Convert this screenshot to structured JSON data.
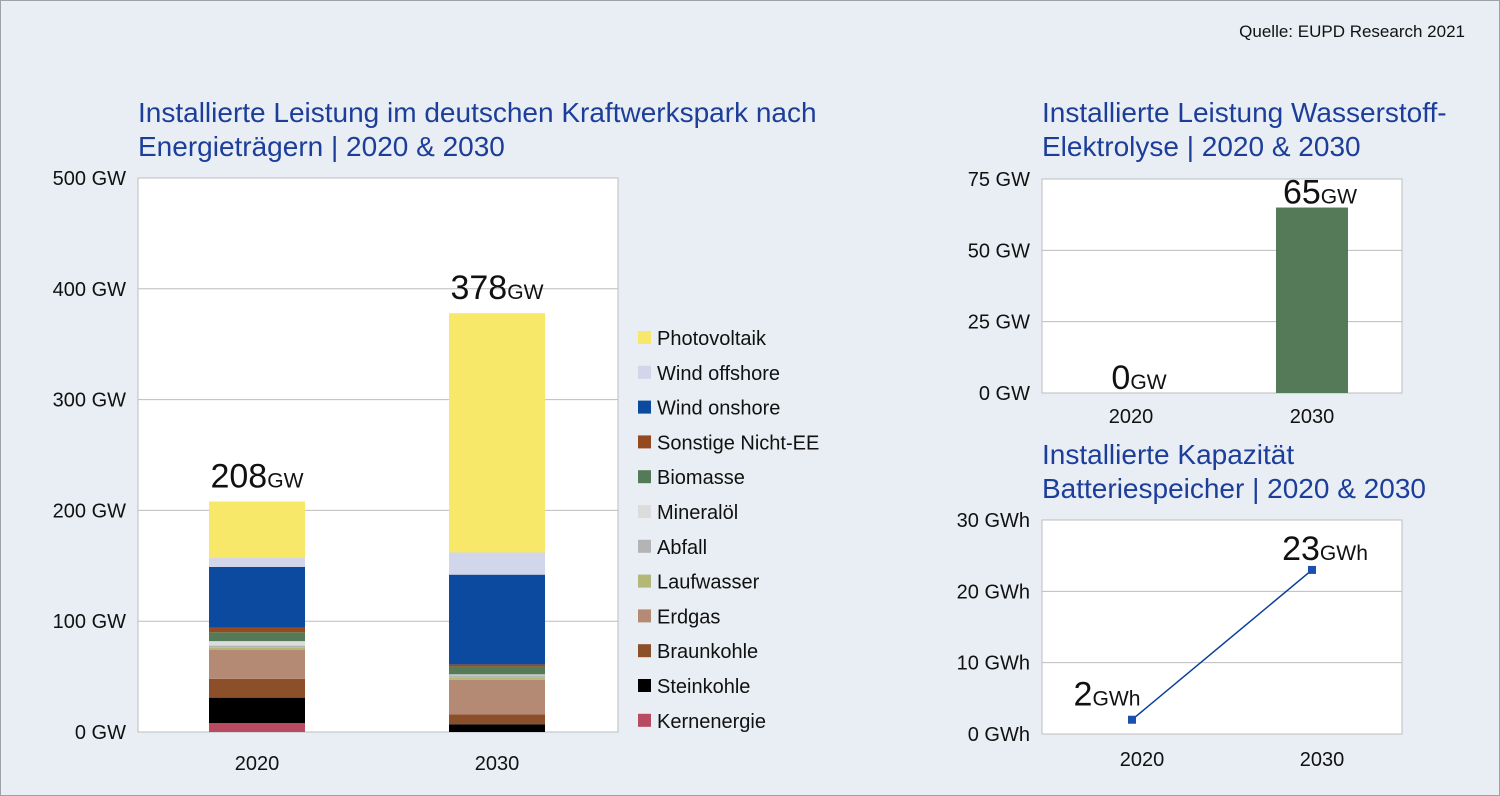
{
  "source": "Quelle: EUPD Research 2021",
  "chart_data": [
    {
      "type": "bar",
      "stacked": true,
      "title": "Installierte Leistung im deutschen Kraftwerkspark nach Energieträgern | 2020 & 2030",
      "categories": [
        "2020",
        "2030"
      ],
      "ylim": [
        0,
        500
      ],
      "yticks": [
        "0 GW",
        "100 GW",
        "200 GW",
        "300 GW",
        "400 GW",
        "500 GW"
      ],
      "yticks_values": [
        0,
        100,
        200,
        300,
        400,
        500
      ],
      "totals": [
        208,
        378
      ],
      "total_unit": "GW",
      "legend_position": "right",
      "series": [
        {
          "name": "Kernenergie",
          "color": "#b84a62",
          "values": [
            8,
            0
          ]
        },
        {
          "name": "Steinkohle",
          "color": "#000000",
          "values": [
            23,
            7
          ]
        },
        {
          "name": "Braunkohle",
          "color": "#8b4f2a",
          "values": [
            17,
            9
          ]
        },
        {
          "name": "Erdgas",
          "color": "#b58a74",
          "values": [
            26,
            31
          ]
        },
        {
          "name": "Laufwasser",
          "color": "#b3b878",
          "values": [
            2,
            2
          ]
        },
        {
          "name": "Abfall",
          "color": "#b4b4b4",
          "values": [
            2,
            2
          ]
        },
        {
          "name": "Mineralöl",
          "color": "#dcdcdc",
          "values": [
            4,
            1
          ]
        },
        {
          "name": "Biomasse",
          "color": "#557a58",
          "values": [
            8,
            7
          ]
        },
        {
          "name": "Sonstige Nicht-EE",
          "color": "#944a1e",
          "values": [
            4,
            2
          ]
        },
        {
          "name": "Wind onshore",
          "color": "#0b4a9e",
          "values": [
            55,
            81
          ]
        },
        {
          "name": "Wind offshore",
          "color": "#d2d6ea",
          "values": [
            8,
            20
          ]
        },
        {
          "name": "Photovoltaik",
          "color": "#f7e86a",
          "values": [
            51,
            216
          ]
        }
      ]
    },
    {
      "type": "bar",
      "title": "Installierte Leistung Wasserstoff-Elektrolyse | 2020 & 2030",
      "categories": [
        "2020",
        "2030"
      ],
      "values": [
        0,
        65
      ],
      "unit": "GW",
      "color": "#557a58",
      "ylim": [
        0,
        75
      ],
      "yticks": [
        "0 GW",
        "25 GW",
        "50 GW",
        "75 GW"
      ],
      "yticks_values": [
        0,
        25,
        50,
        75
      ]
    },
    {
      "type": "line",
      "title": "Installierte Kapazität Batteriespeicher | 2020 & 2030",
      "categories": [
        "2020",
        "2030"
      ],
      "values": [
        2,
        23
      ],
      "unit": "GWh",
      "color": "#0b3f9a",
      "ylim": [
        0,
        30
      ],
      "yticks": [
        "0 GWh",
        "10 GWh",
        "20 GWh",
        "30 GWh"
      ],
      "yticks_values": [
        0,
        10,
        20,
        30
      ]
    }
  ]
}
